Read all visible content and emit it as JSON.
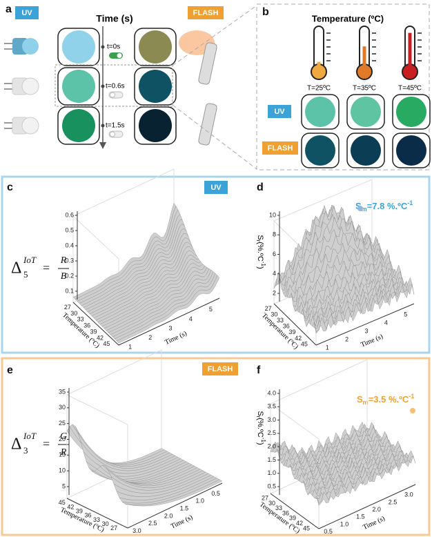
{
  "panel_a": {
    "label": "a",
    "uv": "UV",
    "flash": "FLASH",
    "title": "Time (s)",
    "times": [
      "t=0s",
      "t=0.6s",
      "t=1.5s"
    ]
  },
  "panel_b": {
    "label": "b",
    "title": "Temperature (ºC)",
    "temperatures": [
      "T=25ºC",
      "T=35ºC",
      "T=45ºC"
    ],
    "rows": [
      "UV",
      "FLASH"
    ]
  },
  "panel_c": {
    "label": "c",
    "badge": "UV",
    "equation": {
      "symbol": "Δ",
      "sub": "5",
      "sup": "IoT",
      "equals": "=",
      "numerator": "R",
      "denominator": "B"
    },
    "z_ticks": [
      "0.1",
      "0.2",
      "0.3",
      "0.4",
      "0.5",
      "0.6"
    ],
    "temperature_ticks": [
      "27",
      "30",
      "33",
      "36",
      "39",
      "42",
      "45"
    ],
    "time_ticks": [
      "1",
      "2",
      "3",
      "4",
      "5"
    ],
    "x_label": "Temperature (ºC)",
    "y_label": "Time (s)"
  },
  "panel_d": {
    "label": "d",
    "sm": {
      "s": "S",
      "sub": "m",
      "value": "=7.8 %.ºC",
      "sup": "-1"
    },
    "z_label": {
      "s": "S",
      "sub": "r",
      "unit": "(%.ºC",
      "sup": "-1",
      "close": ")"
    },
    "z_ticks": [
      "2",
      "4",
      "6",
      "8",
      "10"
    ],
    "temperature_ticks": [
      "27",
      "30",
      "33",
      "36",
      "39",
      "42",
      "45"
    ],
    "time_ticks": [
      "1",
      "2",
      "3",
      "4",
      "5"
    ],
    "x_label": "Temperature (ºC)",
    "y_label": "Time (s)"
  },
  "panel_e": {
    "label": "e",
    "badge": "FLASH",
    "equation": {
      "symbol": "Δ",
      "sub": "3",
      "sup": "IoT",
      "equals": "=",
      "numerator": "G",
      "denominator": "R"
    },
    "z_ticks": [
      "5",
      "10",
      "15",
      "20",
      "25",
      "30",
      "35"
    ],
    "temperature_ticks": [
      "45",
      "42",
      "39",
      "36",
      "33",
      "30",
      "27"
    ],
    "time_ticks": [
      "3.0",
      "2.5",
      "2.0",
      "1.5",
      "1.0",
      "0.5"
    ],
    "x_label": "Temperature (ºC)",
    "y_label": "Time (s)"
  },
  "panel_f": {
    "label": "f",
    "sm": {
      "s": "S",
      "sub": "m",
      "value": "=3.5 %.ºC",
      "sup": "-1"
    },
    "z_label": {
      "s": "S",
      "sub": "r",
      "unit": "(%.ºC",
      "sup": "-1",
      "close": ")"
    },
    "z_ticks": [
      "0.5",
      "1.0",
      "1.5",
      "2.0",
      "2.5",
      "3.0",
      "3.5",
      "4.0"
    ],
    "temperature_ticks": [
      "27",
      "30",
      "33",
      "36",
      "39",
      "42",
      "45"
    ],
    "time_ticks": [
      "0.5",
      "1.0",
      "1.5",
      "2.0",
      "2.5",
      "3.0"
    ],
    "x_label": "Temperature (ºC)",
    "y_label": "Time (s)"
  }
}
